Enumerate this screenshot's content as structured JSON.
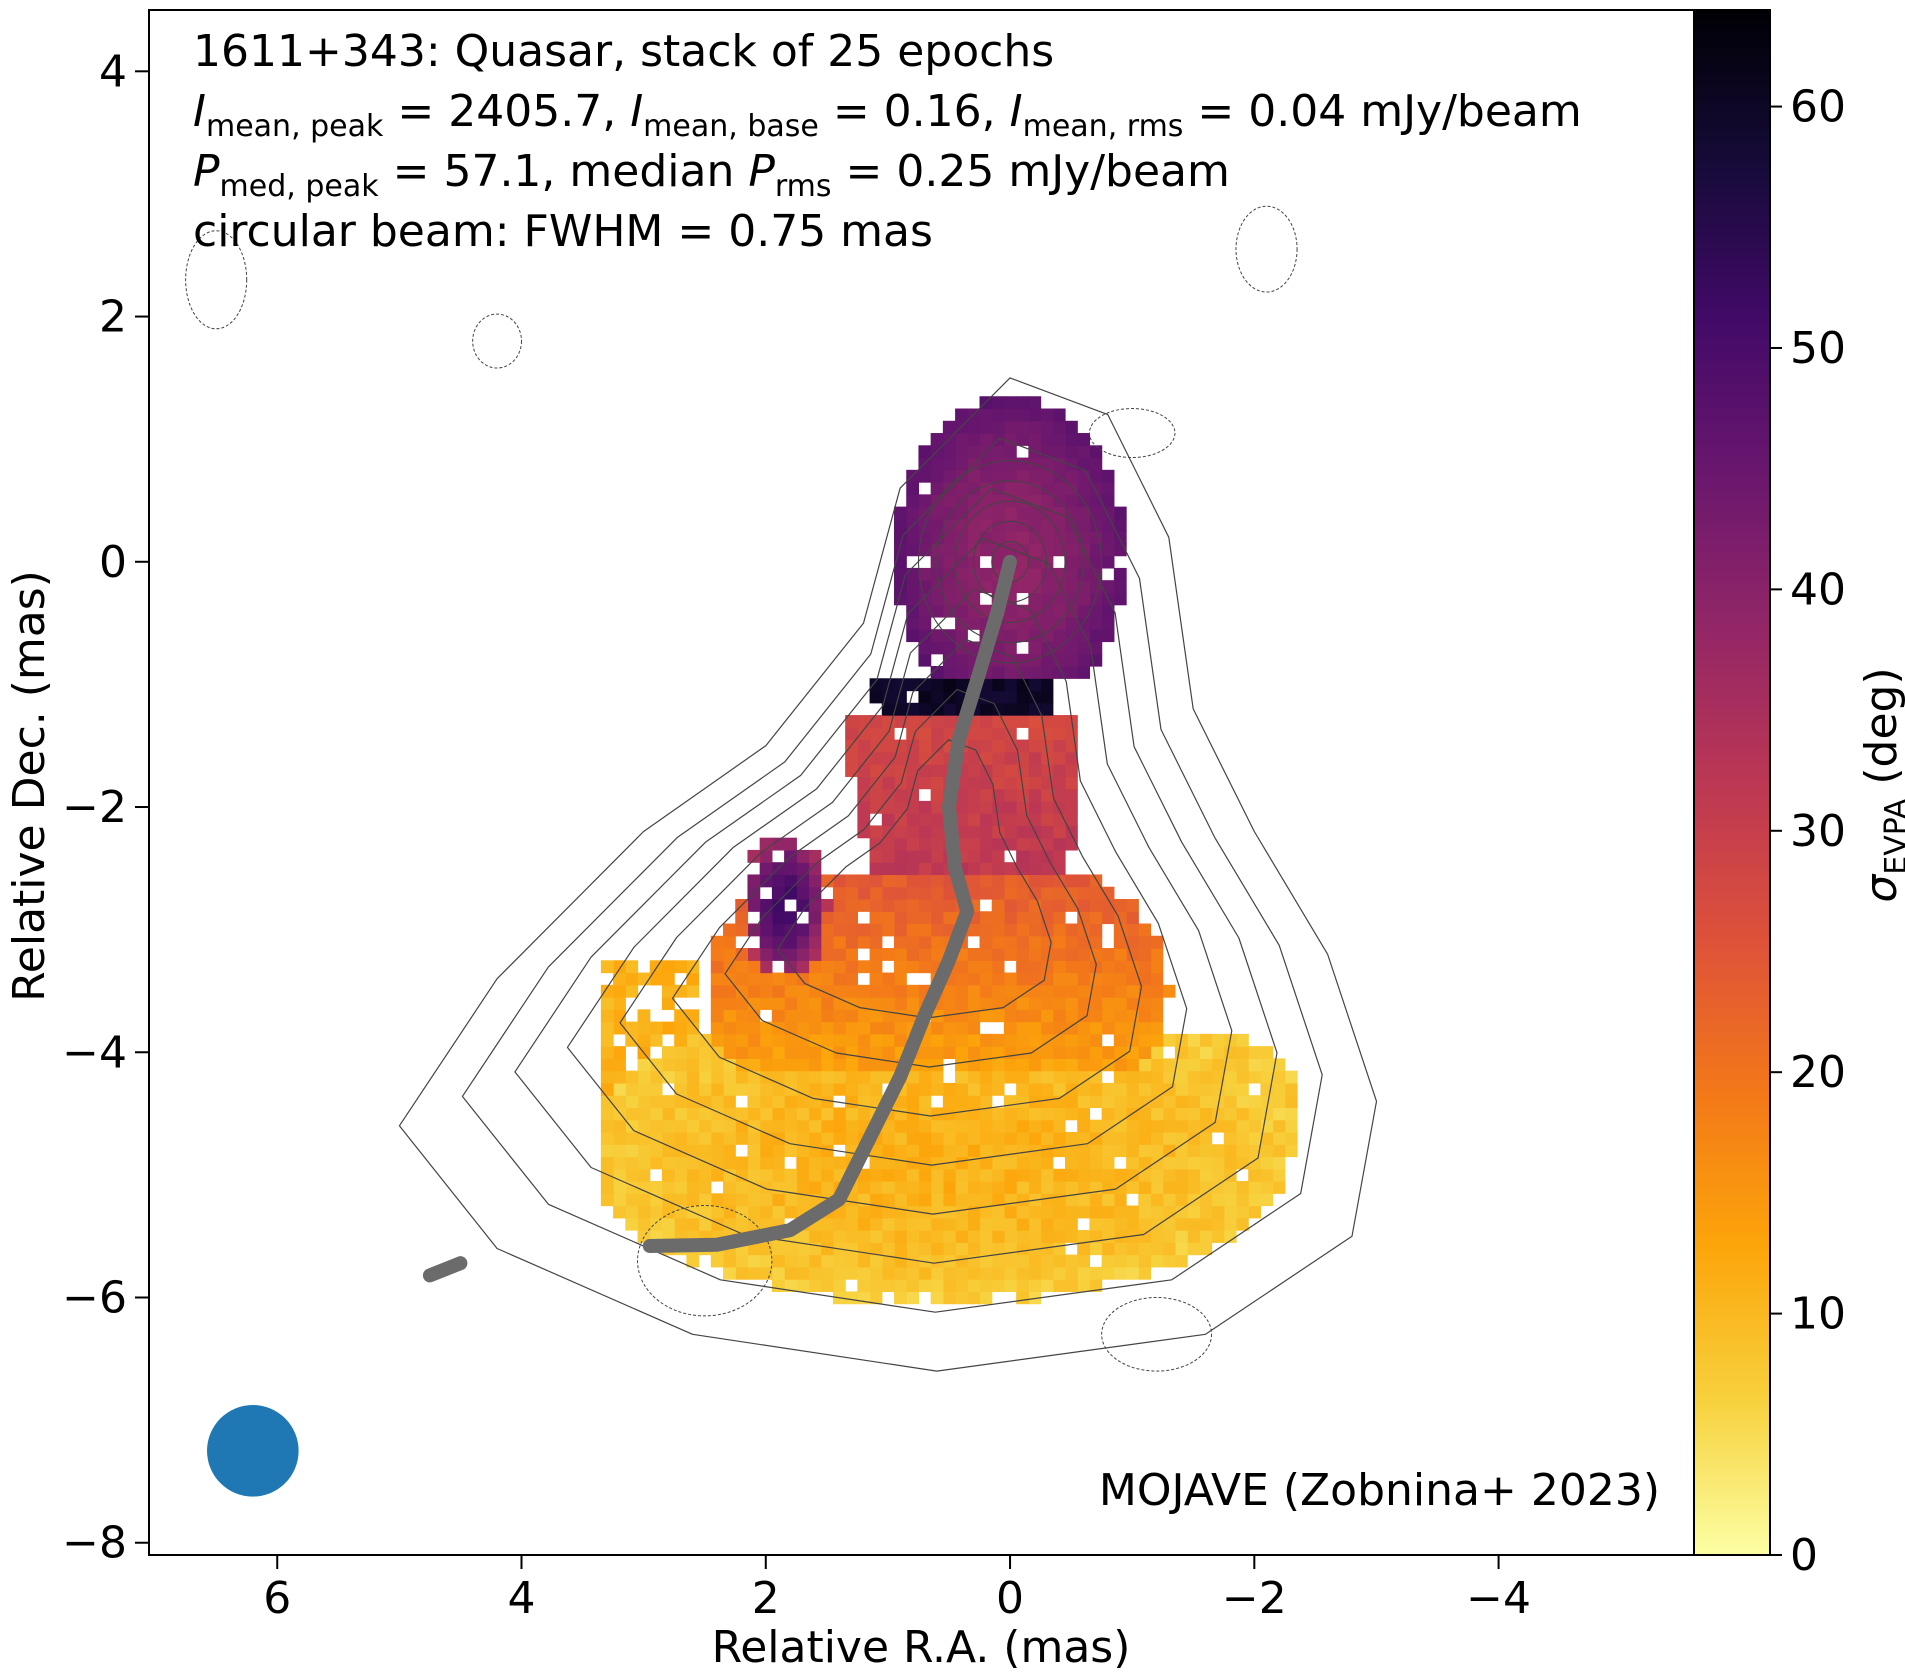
{
  "chart_data": {
    "type": "heatmap",
    "info_lines": [
      {
        "parts": [
          {
            "t": "1611+343: Quasar, stack of 25 epochs"
          }
        ]
      },
      {
        "parts": [
          {
            "t": "I",
            "i": true
          },
          {
            "t": "mean, peak",
            "sub": true
          },
          {
            "t": " = 2405.7, "
          },
          {
            "t": "I",
            "i": true
          },
          {
            "t": "mean, base",
            "sub": true
          },
          {
            "t": " = 0.16, "
          },
          {
            "t": "I",
            "i": true
          },
          {
            "t": "mean, rms",
            "sub": true
          },
          {
            "t": " = 0.04 mJy/beam"
          }
        ]
      },
      {
        "parts": [
          {
            "t": "P",
            "i": true
          },
          {
            "t": "med, peak",
            "sub": true
          },
          {
            "t": " = 57.1, median "
          },
          {
            "t": "P",
            "i": true
          },
          {
            "t": "rms",
            "sub": true
          },
          {
            "t": " = 0.25 mJy/beam"
          }
        ]
      },
      {
        "parts": [
          {
            "t": "circular beam: FWHM = 0.75 mas"
          }
        ]
      }
    ],
    "credit": "MOJAVE (Zobnina+ 2023)",
    "xlabel": "Relative R.A. (mas)",
    "ylabel": "Relative Dec. (mas)",
    "xlim": [
      7.05,
      -5.6
    ],
    "ylim": [
      -8.1,
      4.5
    ],
    "x_ticks": [
      6,
      4,
      2,
      0,
      -2,
      -4
    ],
    "x_tick_labels": [
      "6",
      "4",
      "2",
      "0",
      "−2",
      "−4"
    ],
    "y_ticks": [
      4,
      2,
      0,
      -2,
      -4,
      -6,
      -8
    ],
    "y_tick_labels": [
      "4",
      "2",
      "0",
      "−2",
      "−4",
      "−6",
      "−8"
    ],
    "colorbar": {
      "label_symbol": "σ",
      "label_sub": "EVPA",
      "label_unit": " (deg)",
      "range": [
        0,
        64
      ],
      "ticks": [
        0,
        10,
        20,
        30,
        40,
        50,
        60
      ],
      "colormap": "inferno_r",
      "stops": [
        "#fcffa4",
        "#f7d13d",
        "#fca50a",
        "#f37819",
        "#dd513a",
        "#bc3754",
        "#932667",
        "#6a176e",
        "#420a68",
        "#160b39",
        "#000004"
      ]
    },
    "beam": {
      "x": 6.2,
      "y": -7.25,
      "fwhm_mas": 0.75,
      "color": "#1f77b4"
    },
    "ridgeline": {
      "color": "#6b6b6b",
      "points": [
        [
          0.0,
          0.0
        ],
        [
          0.1,
          -0.4
        ],
        [
          0.25,
          -0.9
        ],
        [
          0.42,
          -1.45
        ],
        [
          0.5,
          -2.0
        ],
        [
          0.45,
          -2.5
        ],
        [
          0.35,
          -2.85
        ],
        [
          0.5,
          -3.25
        ],
        [
          0.7,
          -3.7
        ],
        [
          0.9,
          -4.2
        ],
        [
          1.15,
          -4.7
        ],
        [
          1.4,
          -5.2
        ],
        [
          1.8,
          -5.45
        ],
        [
          2.4,
          -5.57
        ],
        [
          2.95,
          -5.58
        ]
      ],
      "fragment": [
        [
          4.75,
          -5.82
        ],
        [
          4.5,
          -5.72
        ]
      ]
    },
    "contours": {
      "color": "#444444",
      "peak_position": [
        0.0,
        0.0
      ]
    },
    "map_values": {
      "core": {
        "center": [
          0.0,
          0.0
        ],
        "value": 38
      },
      "outer_core": {
        "value": 42
      },
      "dark_bar": {
        "x": [
          0.0,
          1.1
        ],
        "y": [
          -0.95,
          -1.3
        ],
        "value": 62
      },
      "upper_jet": {
        "value": 30
      },
      "jet_knot": {
        "center": [
          1.85,
          -2.75
        ],
        "value": 50
      },
      "lower_jet": {
        "value": 9
      },
      "edge_region": {
        "value": 5
      }
    }
  }
}
